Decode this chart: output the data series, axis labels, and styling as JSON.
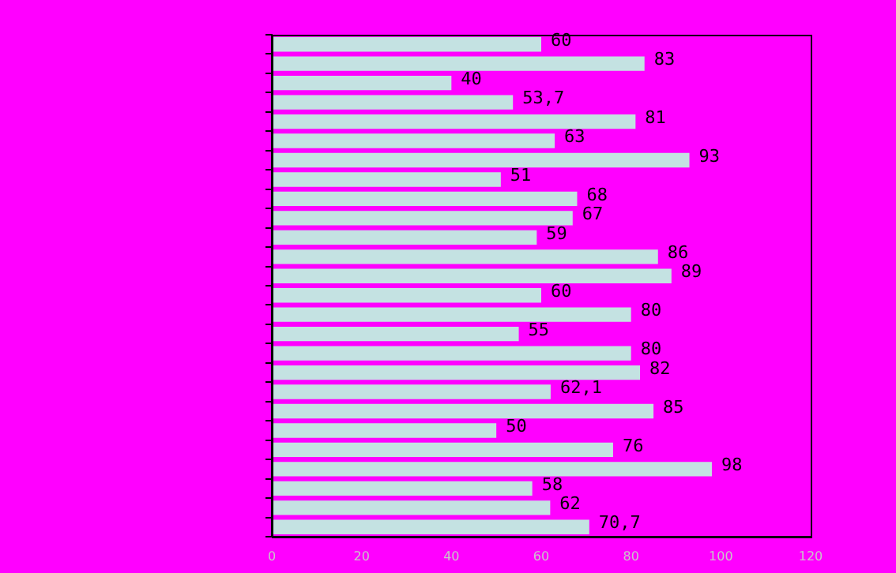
{
  "chart_data": {
    "type": "bar",
    "orientation": "horizontal",
    "categories": [
      null,
      null,
      null,
      null,
      null,
      null,
      null,
      null,
      null,
      null,
      null,
      null,
      null,
      null,
      null,
      null,
      null,
      null,
      null,
      null,
      null,
      null,
      null,
      null,
      null,
      null
    ],
    "values": [
      60,
      83,
      40,
      53.7,
      81,
      63,
      93,
      51,
      68,
      67,
      59,
      86,
      89,
      60,
      80,
      55,
      80,
      82,
      62.1,
      85,
      50,
      76,
      98,
      58,
      62,
      70.7
    ],
    "value_labels": [
      "60",
      "83",
      "40",
      "53,7",
      "81",
      "63",
      "93",
      "51",
      "68",
      "67",
      "59",
      "86",
      "89",
      "60",
      "80",
      "55",
      "80",
      "82",
      "62,1",
      "85",
      "50",
      "76",
      "98",
      "58",
      "62",
      "70,7"
    ],
    "color": "#c4e2e2",
    "xlim": [
      0,
      120
    ],
    "xticks": [
      0,
      20,
      40,
      60,
      80,
      100,
      120
    ],
    "grid": false,
    "legend": false
  }
}
